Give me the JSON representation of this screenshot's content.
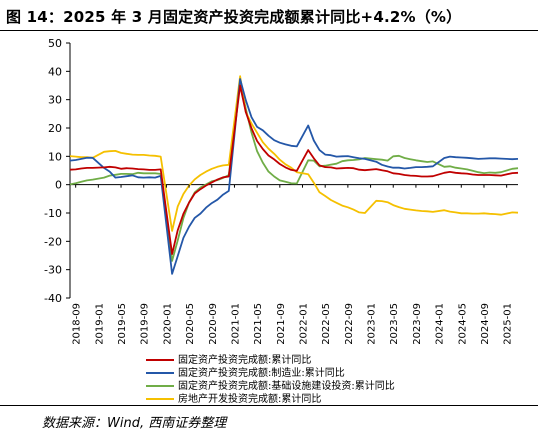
{
  "title": "图 14：2025 年 3 月固定资产投资完成额累计同比+4.2%（%）",
  "source": "数据来源：Wind, 西南证券整理",
  "chart_data": {
    "type": "line",
    "ylim": [
      -40,
      50
    ],
    "yticks": [
      "50",
      "40",
      "30",
      "20",
      "10",
      "0",
      "-10",
      "-20",
      "-30",
      "-40"
    ],
    "xtick_labels": [
      "2018-09",
      "2019-01",
      "2019-05",
      "2019-09",
      "2020-01",
      "2020-05",
      "2020-09",
      "2021-01",
      "2021-05",
      "2021-09",
      "2022-01",
      "2022-05",
      "2022-09",
      "2023-01",
      "2023-05",
      "2023-09",
      "2024-01",
      "2024-05",
      "2024-09",
      "2025-01"
    ],
    "x_range": [
      "2018-08",
      "2025-03"
    ],
    "grid": false,
    "legend_position": "bottom",
    "series": [
      {
        "name": "固定资产投资完成额:累计同比",
        "color": "#c00000",
        "x": [
          "2018-08",
          "2018-09",
          "2018-10",
          "2018-11",
          "2018-12",
          "2019-02",
          "2019-03",
          "2019-04",
          "2019-05",
          "2019-06",
          "2019-07",
          "2019-08",
          "2019-09",
          "2019-10",
          "2019-11",
          "2019-12",
          "2020-02",
          "2020-03",
          "2020-04",
          "2020-05",
          "2020-06",
          "2020-07",
          "2020-08",
          "2020-09",
          "2020-10",
          "2020-11",
          "2020-12",
          "2021-02",
          "2021-03",
          "2021-04",
          "2021-05",
          "2021-06",
          "2021-07",
          "2021-08",
          "2021-09",
          "2021-10",
          "2021-11",
          "2021-12",
          "2022-02",
          "2022-03",
          "2022-04",
          "2022-05",
          "2022-06",
          "2022-07",
          "2022-08",
          "2022-09",
          "2022-10",
          "2022-11",
          "2022-12",
          "2023-02",
          "2023-03",
          "2023-04",
          "2023-05",
          "2023-06",
          "2023-07",
          "2023-08",
          "2023-09",
          "2023-10",
          "2023-11",
          "2023-12",
          "2024-02",
          "2024-03",
          "2024-04",
          "2024-05",
          "2024-06",
          "2024-07",
          "2024-08",
          "2024-09",
          "2024-10",
          "2024-11",
          "2024-12",
          "2025-02",
          "2025-03"
        ],
        "y": [
          5.3,
          5.4,
          5.7,
          5.9,
          5.9,
          6.1,
          6.3,
          6.1,
          5.6,
          5.8,
          5.7,
          5.5,
          5.4,
          5.2,
          5.2,
          5.4,
          -24.5,
          -16.1,
          -10.3,
          -6.3,
          -3.1,
          -1.6,
          -0.3,
          0.8,
          1.8,
          2.6,
          2.9,
          35.0,
          25.6,
          19.9,
          15.4,
          12.6,
          10.3,
          8.9,
          7.3,
          6.1,
          5.2,
          4.9,
          12.2,
          9.3,
          6.8,
          6.2,
          6.1,
          5.7,
          5.8,
          5.9,
          5.8,
          5.3,
          5.1,
          5.5,
          5.1,
          4.7,
          4.0,
          3.8,
          3.4,
          3.2,
          3.1,
          2.9,
          2.9,
          3.0,
          4.2,
          4.5,
          4.2,
          4.0,
          3.9,
          3.6,
          3.4,
          3.4,
          3.4,
          3.3,
          3.2,
          4.1,
          4.2
        ]
      },
      {
        "name": "固定资产投资完成额:制造业:累计同比",
        "color": "#2457a8",
        "x": [
          "2018-08",
          "2018-09",
          "2018-10",
          "2018-11",
          "2018-12",
          "2019-02",
          "2019-03",
          "2019-04",
          "2019-05",
          "2019-06",
          "2019-07",
          "2019-08",
          "2019-09",
          "2019-10",
          "2019-11",
          "2019-12",
          "2020-02",
          "2020-03",
          "2020-04",
          "2020-05",
          "2020-06",
          "2020-07",
          "2020-08",
          "2020-09",
          "2020-10",
          "2020-11",
          "2020-12",
          "2021-02",
          "2021-03",
          "2021-04",
          "2021-05",
          "2021-06",
          "2021-07",
          "2021-08",
          "2021-09",
          "2021-10",
          "2021-11",
          "2021-12",
          "2022-02",
          "2022-03",
          "2022-04",
          "2022-05",
          "2022-06",
          "2022-07",
          "2022-08",
          "2022-09",
          "2022-10",
          "2022-11",
          "2022-12",
          "2023-02",
          "2023-03",
          "2023-04",
          "2023-05",
          "2023-06",
          "2023-07",
          "2023-08",
          "2023-09",
          "2023-10",
          "2023-11",
          "2023-12",
          "2024-02",
          "2024-03",
          "2024-04",
          "2024-05",
          "2024-06",
          "2024-07",
          "2024-08",
          "2024-09",
          "2024-10",
          "2024-11",
          "2024-12",
          "2025-02",
          "2025-03"
        ],
        "y": [
          8.5,
          8.7,
          9.1,
          9.5,
          9.5,
          5.9,
          4.6,
          2.5,
          2.7,
          3.0,
          3.3,
          2.6,
          2.5,
          2.6,
          2.5,
          3.1,
          -31.5,
          -25.2,
          -18.8,
          -14.8,
          -11.7,
          -10.2,
          -8.1,
          -6.5,
          -5.3,
          -3.5,
          -2.2,
          37.3,
          29.8,
          23.8,
          20.4,
          19.2,
          17.3,
          15.7,
          14.8,
          14.2,
          13.7,
          13.5,
          20.9,
          15.6,
          12.2,
          10.6,
          10.4,
          9.9,
          10.0,
          10.1,
          9.7,
          9.3,
          9.1,
          8.1,
          7.0,
          6.4,
          6.0,
          6.0,
          5.7,
          5.9,
          6.2,
          6.2,
          6.3,
          6.5,
          9.4,
          9.9,
          9.7,
          9.6,
          9.5,
          9.3,
          9.1,
          9.2,
          9.3,
          9.3,
          9.2,
          9.0,
          9.1
        ]
      },
      {
        "name": "固定资产投资完成额:基础设施建设投资:累计同比",
        "color": "#70ad47",
        "x": [
          "2018-08",
          "2018-09",
          "2018-10",
          "2018-11",
          "2018-12",
          "2019-02",
          "2019-03",
          "2019-04",
          "2019-05",
          "2019-06",
          "2019-07",
          "2019-08",
          "2019-09",
          "2019-10",
          "2019-11",
          "2019-12",
          "2020-02",
          "2020-03",
          "2020-04",
          "2020-05",
          "2020-06",
          "2020-07",
          "2020-08",
          "2020-09",
          "2020-10",
          "2020-11",
          "2020-12",
          "2021-02",
          "2021-03",
          "2021-04",
          "2021-05",
          "2021-06",
          "2021-07",
          "2021-08",
          "2021-09",
          "2021-10",
          "2021-11",
          "2021-12",
          "2022-02",
          "2022-03",
          "2022-04",
          "2022-05",
          "2022-06",
          "2022-07",
          "2022-08",
          "2022-09",
          "2022-10",
          "2022-11",
          "2022-12",
          "2023-02",
          "2023-03",
          "2023-04",
          "2023-05",
          "2023-06",
          "2023-07",
          "2023-08",
          "2023-09",
          "2023-10",
          "2023-11",
          "2023-12",
          "2024-02",
          "2024-03",
          "2024-04",
          "2024-05",
          "2024-06",
          "2024-07",
          "2024-08",
          "2024-09",
          "2024-10",
          "2024-11",
          "2024-12",
          "2025-02",
          "2025-03"
        ],
        "y": [
          0.1,
          0.5,
          1.0,
          1.5,
          1.8,
          2.5,
          3.2,
          3.5,
          3.8,
          3.8,
          3.7,
          4.2,
          4.0,
          4.0,
          4.0,
          3.8,
          -26.9,
          -19.7,
          -11.8,
          -6.3,
          -2.7,
          -1.0,
          0.1,
          1.2,
          1.6,
          2.4,
          3.4,
          36.6,
          26.8,
          18.4,
          11.8,
          7.8,
          4.6,
          2.9,
          1.5,
          1.0,
          0.5,
          0.4,
          8.6,
          8.5,
          6.5,
          6.7,
          7.1,
          7.4,
          8.3,
          8.6,
          8.7,
          8.9,
          9.4,
          9.0,
          8.8,
          8.5,
          10.0,
          10.2,
          9.4,
          9.0,
          8.6,
          8.3,
          8.0,
          8.2,
          6.3,
          6.5,
          6.0,
          5.7,
          5.4,
          4.9,
          4.4,
          4.1,
          4.3,
          4.2,
          4.4,
          5.6,
          5.8
        ]
      },
      {
        "name": "房地产开发投资完成额:累计同比",
        "color": "#f5c000",
        "x": [
          "2018-08",
          "2018-09",
          "2018-10",
          "2018-11",
          "2018-12",
          "2019-02",
          "2019-03",
          "2019-04",
          "2019-05",
          "2019-06",
          "2019-07",
          "2019-08",
          "2019-09",
          "2019-10",
          "2019-11",
          "2019-12",
          "2020-02",
          "2020-03",
          "2020-04",
          "2020-05",
          "2020-06",
          "2020-07",
          "2020-08",
          "2020-09",
          "2020-10",
          "2020-11",
          "2020-12",
          "2021-02",
          "2021-03",
          "2021-04",
          "2021-05",
          "2021-06",
          "2021-07",
          "2021-08",
          "2021-09",
          "2021-10",
          "2021-11",
          "2021-12",
          "2022-02",
          "2022-03",
          "2022-04",
          "2022-05",
          "2022-06",
          "2022-07",
          "2022-08",
          "2022-09",
          "2022-10",
          "2022-11",
          "2022-12",
          "2023-02",
          "2023-03",
          "2023-04",
          "2023-05",
          "2023-06",
          "2023-07",
          "2023-08",
          "2023-09",
          "2023-10",
          "2023-11",
          "2023-12",
          "2024-02",
          "2024-03",
          "2024-04",
          "2024-05",
          "2024-06",
          "2024-07",
          "2024-08",
          "2024-09",
          "2024-10",
          "2024-11",
          "2024-12",
          "2025-02",
          "2025-03"
        ],
        "y": [
          10.1,
          9.9,
          9.7,
          9.7,
          9.5,
          11.6,
          11.8,
          11.9,
          11.2,
          10.9,
          10.6,
          10.5,
          10.5,
          10.3,
          10.2,
          9.9,
          -16.3,
          -7.7,
          -3.3,
          -0.3,
          1.9,
          3.4,
          4.6,
          5.6,
          6.3,
          6.8,
          7.0,
          38.3,
          25.6,
          21.6,
          18.3,
          15.0,
          12.7,
          10.9,
          8.8,
          7.2,
          6.0,
          4.4,
          3.7,
          0.7,
          -2.7,
          -4.0,
          -5.4,
          -6.4,
          -7.4,
          -8.0,
          -8.8,
          -9.8,
          -10.0,
          -5.7,
          -5.8,
          -6.2,
          -7.2,
          -7.9,
          -8.5,
          -8.8,
          -9.1,
          -9.3,
          -9.4,
          -9.6,
          -9.0,
          -9.5,
          -9.8,
          -10.1,
          -10.1,
          -10.2,
          -10.2,
          -10.1,
          -10.3,
          -10.4,
          -10.6,
          -9.8,
          -9.9
        ]
      }
    ]
  }
}
